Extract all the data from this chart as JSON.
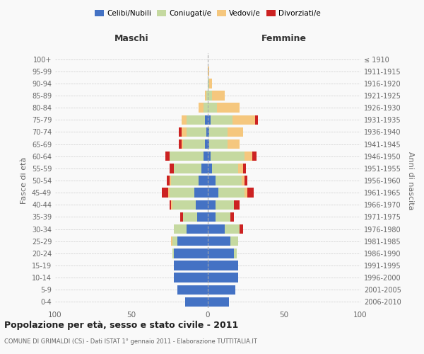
{
  "age_groups": [
    "0-4",
    "5-9",
    "10-14",
    "15-19",
    "20-24",
    "25-29",
    "30-34",
    "35-39",
    "40-44",
    "45-49",
    "50-54",
    "55-59",
    "60-64",
    "65-69",
    "70-74",
    "75-79",
    "80-84",
    "85-89",
    "90-94",
    "95-99",
    "100+"
  ],
  "birth_years": [
    "2006-2010",
    "2001-2005",
    "1996-2000",
    "1991-1995",
    "1986-1990",
    "1981-1985",
    "1976-1980",
    "1971-1975",
    "1966-1970",
    "1961-1965",
    "1956-1960",
    "1951-1955",
    "1946-1950",
    "1941-1945",
    "1936-1940",
    "1931-1935",
    "1926-1930",
    "1921-1925",
    "1916-1920",
    "1911-1915",
    "≤ 1910"
  ],
  "male": {
    "celibi": [
      15,
      20,
      22,
      22,
      22,
      20,
      14,
      7,
      8,
      9,
      6,
      4,
      3,
      2,
      1,
      2,
      0,
      0,
      0,
      0,
      0
    ],
    "coniugati": [
      0,
      0,
      0,
      0,
      1,
      3,
      8,
      9,
      15,
      16,
      18,
      18,
      22,
      14,
      13,
      12,
      3,
      1,
      0,
      0,
      0
    ],
    "vedovi": [
      0,
      0,
      0,
      0,
      0,
      1,
      0,
      0,
      1,
      1,
      1,
      0,
      0,
      1,
      3,
      3,
      3,
      1,
      0,
      0,
      0
    ],
    "divorziati": [
      0,
      0,
      0,
      0,
      0,
      0,
      0,
      2,
      1,
      4,
      2,
      3,
      3,
      2,
      2,
      0,
      0,
      0,
      0,
      0,
      0
    ]
  },
  "female": {
    "nubili": [
      14,
      18,
      20,
      20,
      17,
      15,
      11,
      5,
      5,
      7,
      5,
      3,
      2,
      1,
      1,
      2,
      0,
      0,
      0,
      0,
      0
    ],
    "coniugate": [
      0,
      0,
      0,
      0,
      2,
      5,
      10,
      10,
      12,
      17,
      17,
      17,
      22,
      12,
      12,
      14,
      6,
      3,
      1,
      0,
      0
    ],
    "vedove": [
      0,
      0,
      0,
      0,
      0,
      0,
      0,
      0,
      0,
      2,
      2,
      3,
      5,
      8,
      10,
      15,
      15,
      8,
      2,
      1,
      0
    ],
    "divorziate": [
      0,
      0,
      0,
      0,
      0,
      0,
      2,
      2,
      4,
      4,
      2,
      2,
      3,
      0,
      0,
      2,
      0,
      0,
      0,
      0,
      0
    ]
  },
  "colors": {
    "celibi": "#4472C4",
    "coniugati": "#c5d9a0",
    "vedovi": "#f5c77e",
    "divorziati": "#cc2222"
  },
  "xlim": [
    -100,
    100
  ],
  "title": "Popolazione per età, sesso e stato civile - 2011",
  "subtitle": "COMUNE DI GRIMALDI (CS) - Dati ISTAT 1° gennaio 2011 - Elaborazione TUTTITALIA.IT",
  "ylabel_left": "Fasce di età",
  "ylabel_right": "Anni di nascita",
  "header_maschi": "Maschi",
  "header_femmine": "Femmine",
  "legend_labels": [
    "Celibi/Nubili",
    "Coniugati/e",
    "Vedovi/e",
    "Divorziati/e"
  ],
  "background_color": "#f9f9f9",
  "plot_bg": "#f9f9f9"
}
